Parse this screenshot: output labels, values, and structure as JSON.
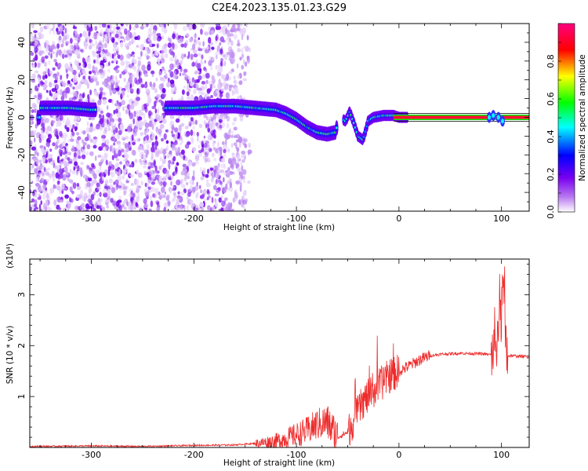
{
  "chart_data": [
    {
      "type": "heatmap",
      "title": "C2E4.2023.135.01.23.G29",
      "xlabel": "Height of straight line (km)",
      "ylabel": "Frequency (Hz)",
      "xlim": [
        -360,
        127
      ],
      "ylim": [
        -50,
        50
      ],
      "x_ticks": [
        -300,
        -200,
        -100,
        0,
        100
      ],
      "y_ticks": [
        -40,
        -20,
        0,
        20,
        40
      ],
      "colorbar": {
        "label": "Normalized spectral amplitude",
        "range": [
          0,
          1
        ],
        "ticks": [
          "0.0",
          "0.2",
          "0.4",
          "0.6",
          "0.8"
        ],
        "colors": [
          "#ffffff",
          "#b878f0",
          "#7a00f0",
          "#0000ff",
          "#00ffff",
          "#00ff00",
          "#ffff00",
          "#ff0000",
          "#ff0080"
        ]
      },
      "main_track": [
        {
          "x": -350,
          "y": 5
        },
        {
          "x": -320,
          "y": 5
        },
        {
          "x": -300,
          "y": 4
        },
        {
          "x": -225,
          "y": 5
        },
        {
          "x": -200,
          "y": 5
        },
        {
          "x": -180,
          "y": 6
        },
        {
          "x": -160,
          "y": 6
        },
        {
          "x": -140,
          "y": 5
        },
        {
          "x": -120,
          "y": 4
        },
        {
          "x": -110,
          "y": 2
        },
        {
          "x": -100,
          "y": -1
        },
        {
          "x": -90,
          "y": -5
        },
        {
          "x": -80,
          "y": -8
        },
        {
          "x": -70,
          "y": -9
        },
        {
          "x": -62,
          "y": -8
        },
        {
          "x": -58,
          "y": 0
        },
        {
          "x": -52,
          "y": -2
        },
        {
          "x": -48,
          "y": 3
        },
        {
          "x": -44,
          "y": -3
        },
        {
          "x": -40,
          "y": -10
        },
        {
          "x": -35,
          "y": -12
        },
        {
          "x": -30,
          "y": -2
        },
        {
          "x": -25,
          "y": 0
        },
        {
          "x": -15,
          "y": 1
        },
        {
          "x": -5,
          "y": 1
        },
        {
          "x": 0,
          "y": 0
        },
        {
          "x": 10,
          "y": 0
        },
        {
          "x": 60,
          "y": 0
        },
        {
          "x": 90,
          "y": 0
        },
        {
          "x": 100,
          "y": 0
        },
        {
          "x": 127,
          "y": 0
        }
      ]
    },
    {
      "type": "line",
      "title": "",
      "xlabel": "Height of straight line (km)",
      "ylabel": "SNR (10 * v/v)",
      "y_multiplier": "(x10⁴)",
      "xlim": [
        -360,
        127
      ],
      "ylim": [
        0,
        3.7
      ],
      "x_ticks": [
        -300,
        -200,
        -100,
        0,
        100
      ],
      "y_ticks": [
        1,
        2,
        3
      ],
      "series_color": "#ee2a2a",
      "series": [
        {
          "x": [
            -360,
            -300,
            -250,
            -200,
            -160,
            -140,
            -120,
            -110,
            -100,
            -90,
            -80,
            -70,
            -60,
            -50,
            -45,
            -40,
            -35,
            -30,
            -25,
            -20,
            -15,
            -10,
            -5,
            0,
            10,
            20,
            30,
            40,
            60,
            80,
            90,
            95,
            100,
            102,
            104,
            106,
            110,
            120,
            127
          ],
          "y": [
            0.02,
            0.03,
            0.02,
            0.04,
            0.05,
            0.08,
            0.12,
            0.18,
            0.25,
            0.32,
            0.45,
            0.5,
            0.2,
            0.3,
            0.5,
            0.7,
            0.9,
            1.0,
            1.1,
            1.2,
            1.3,
            1.4,
            1.45,
            1.5,
            1.6,
            1.72,
            1.8,
            1.83,
            1.85,
            1.84,
            1.82,
            2.1,
            2.6,
            3.2,
            1.9,
            1.8,
            1.8,
            1.79,
            1.78
          ]
        }
      ]
    }
  ]
}
